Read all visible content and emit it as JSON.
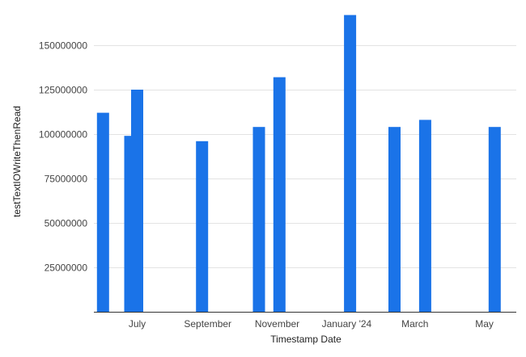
{
  "chart_data": {
    "type": "bar",
    "title": "",
    "xlabel": "Timestamp Date",
    "ylabel": "testTextIOWriteThenRead",
    "ylim": [
      0,
      170000000
    ],
    "yticks": [
      25000000,
      50000000,
      75000000,
      100000000,
      125000000,
      150000000
    ],
    "ytick_labels": [
      "25000000",
      "50000000",
      "75000000",
      "100000000",
      "125000000",
      "150000000"
    ],
    "xlim": [
      "2023-05-24",
      "2024-05-29"
    ],
    "xticks": [
      {
        "date": "2023-07-01",
        "label": "July"
      },
      {
        "date": "2023-09-01",
        "label": "September"
      },
      {
        "date": "2023-11-01",
        "label": "November"
      },
      {
        "date": "2024-01-01",
        "label": "January '24"
      },
      {
        "date": "2024-03-01",
        "label": "March"
      },
      {
        "date": "2024-05-01",
        "label": "May"
      }
    ],
    "grid": true,
    "legend": "none",
    "color": "#1a73e8",
    "points": [
      {
        "date": "2023-06-01",
        "value": 112000000
      },
      {
        "date": "2023-06-25",
        "value": 99000000
      },
      {
        "date": "2023-07-01",
        "value": 125000000
      },
      {
        "date": "2023-08-27",
        "value": 96000000
      },
      {
        "date": "2023-10-16",
        "value": 104000000
      },
      {
        "date": "2023-11-03",
        "value": 132000000
      },
      {
        "date": "2024-01-04",
        "value": 167000000
      },
      {
        "date": "2024-02-12",
        "value": 104000000
      },
      {
        "date": "2024-03-10",
        "value": 108000000
      },
      {
        "date": "2024-05-10",
        "value": 104000000
      }
    ]
  }
}
